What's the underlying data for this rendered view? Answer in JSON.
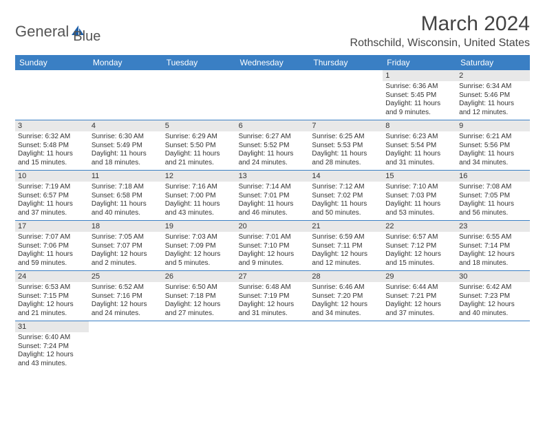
{
  "logo": {
    "part1": "General",
    "part2": "Blue"
  },
  "title": "March 2024",
  "location": "Rothschild, Wisconsin, United States",
  "weekdays": [
    "Sunday",
    "Monday",
    "Tuesday",
    "Wednesday",
    "Thursday",
    "Friday",
    "Saturday"
  ],
  "weeks": [
    [
      null,
      null,
      null,
      null,
      null,
      {
        "n": "1",
        "sunrise": "Sunrise: 6:36 AM",
        "sunset": "Sunset: 5:45 PM",
        "daylight": "Daylight: 11 hours and 9 minutes."
      },
      {
        "n": "2",
        "sunrise": "Sunrise: 6:34 AM",
        "sunset": "Sunset: 5:46 PM",
        "daylight": "Daylight: 11 hours and 12 minutes."
      }
    ],
    [
      {
        "n": "3",
        "sunrise": "Sunrise: 6:32 AM",
        "sunset": "Sunset: 5:48 PM",
        "daylight": "Daylight: 11 hours and 15 minutes."
      },
      {
        "n": "4",
        "sunrise": "Sunrise: 6:30 AM",
        "sunset": "Sunset: 5:49 PM",
        "daylight": "Daylight: 11 hours and 18 minutes."
      },
      {
        "n": "5",
        "sunrise": "Sunrise: 6:29 AM",
        "sunset": "Sunset: 5:50 PM",
        "daylight": "Daylight: 11 hours and 21 minutes."
      },
      {
        "n": "6",
        "sunrise": "Sunrise: 6:27 AM",
        "sunset": "Sunset: 5:52 PM",
        "daylight": "Daylight: 11 hours and 24 minutes."
      },
      {
        "n": "7",
        "sunrise": "Sunrise: 6:25 AM",
        "sunset": "Sunset: 5:53 PM",
        "daylight": "Daylight: 11 hours and 28 minutes."
      },
      {
        "n": "8",
        "sunrise": "Sunrise: 6:23 AM",
        "sunset": "Sunset: 5:54 PM",
        "daylight": "Daylight: 11 hours and 31 minutes."
      },
      {
        "n": "9",
        "sunrise": "Sunrise: 6:21 AM",
        "sunset": "Sunset: 5:56 PM",
        "daylight": "Daylight: 11 hours and 34 minutes."
      }
    ],
    [
      {
        "n": "10",
        "sunrise": "Sunrise: 7:19 AM",
        "sunset": "Sunset: 6:57 PM",
        "daylight": "Daylight: 11 hours and 37 minutes."
      },
      {
        "n": "11",
        "sunrise": "Sunrise: 7:18 AM",
        "sunset": "Sunset: 6:58 PM",
        "daylight": "Daylight: 11 hours and 40 minutes."
      },
      {
        "n": "12",
        "sunrise": "Sunrise: 7:16 AM",
        "sunset": "Sunset: 7:00 PM",
        "daylight": "Daylight: 11 hours and 43 minutes."
      },
      {
        "n": "13",
        "sunrise": "Sunrise: 7:14 AM",
        "sunset": "Sunset: 7:01 PM",
        "daylight": "Daylight: 11 hours and 46 minutes."
      },
      {
        "n": "14",
        "sunrise": "Sunrise: 7:12 AM",
        "sunset": "Sunset: 7:02 PM",
        "daylight": "Daylight: 11 hours and 50 minutes."
      },
      {
        "n": "15",
        "sunrise": "Sunrise: 7:10 AM",
        "sunset": "Sunset: 7:03 PM",
        "daylight": "Daylight: 11 hours and 53 minutes."
      },
      {
        "n": "16",
        "sunrise": "Sunrise: 7:08 AM",
        "sunset": "Sunset: 7:05 PM",
        "daylight": "Daylight: 11 hours and 56 minutes."
      }
    ],
    [
      {
        "n": "17",
        "sunrise": "Sunrise: 7:07 AM",
        "sunset": "Sunset: 7:06 PM",
        "daylight": "Daylight: 11 hours and 59 minutes."
      },
      {
        "n": "18",
        "sunrise": "Sunrise: 7:05 AM",
        "sunset": "Sunset: 7:07 PM",
        "daylight": "Daylight: 12 hours and 2 minutes."
      },
      {
        "n": "19",
        "sunrise": "Sunrise: 7:03 AM",
        "sunset": "Sunset: 7:09 PM",
        "daylight": "Daylight: 12 hours and 5 minutes."
      },
      {
        "n": "20",
        "sunrise": "Sunrise: 7:01 AM",
        "sunset": "Sunset: 7:10 PM",
        "daylight": "Daylight: 12 hours and 9 minutes."
      },
      {
        "n": "21",
        "sunrise": "Sunrise: 6:59 AM",
        "sunset": "Sunset: 7:11 PM",
        "daylight": "Daylight: 12 hours and 12 minutes."
      },
      {
        "n": "22",
        "sunrise": "Sunrise: 6:57 AM",
        "sunset": "Sunset: 7:12 PM",
        "daylight": "Daylight: 12 hours and 15 minutes."
      },
      {
        "n": "23",
        "sunrise": "Sunrise: 6:55 AM",
        "sunset": "Sunset: 7:14 PM",
        "daylight": "Daylight: 12 hours and 18 minutes."
      }
    ],
    [
      {
        "n": "24",
        "sunrise": "Sunrise: 6:53 AM",
        "sunset": "Sunset: 7:15 PM",
        "daylight": "Daylight: 12 hours and 21 minutes."
      },
      {
        "n": "25",
        "sunrise": "Sunrise: 6:52 AM",
        "sunset": "Sunset: 7:16 PM",
        "daylight": "Daylight: 12 hours and 24 minutes."
      },
      {
        "n": "26",
        "sunrise": "Sunrise: 6:50 AM",
        "sunset": "Sunset: 7:18 PM",
        "daylight": "Daylight: 12 hours and 27 minutes."
      },
      {
        "n": "27",
        "sunrise": "Sunrise: 6:48 AM",
        "sunset": "Sunset: 7:19 PM",
        "daylight": "Daylight: 12 hours and 31 minutes."
      },
      {
        "n": "28",
        "sunrise": "Sunrise: 6:46 AM",
        "sunset": "Sunset: 7:20 PM",
        "daylight": "Daylight: 12 hours and 34 minutes."
      },
      {
        "n": "29",
        "sunrise": "Sunrise: 6:44 AM",
        "sunset": "Sunset: 7:21 PM",
        "daylight": "Daylight: 12 hours and 37 minutes."
      },
      {
        "n": "30",
        "sunrise": "Sunrise: 6:42 AM",
        "sunset": "Sunset: 7:23 PM",
        "daylight": "Daylight: 12 hours and 40 minutes."
      }
    ],
    [
      {
        "n": "31",
        "sunrise": "Sunrise: 6:40 AM",
        "sunset": "Sunset: 7:24 PM",
        "daylight": "Daylight: 12 hours and 43 minutes."
      },
      null,
      null,
      null,
      null,
      null,
      null
    ]
  ]
}
